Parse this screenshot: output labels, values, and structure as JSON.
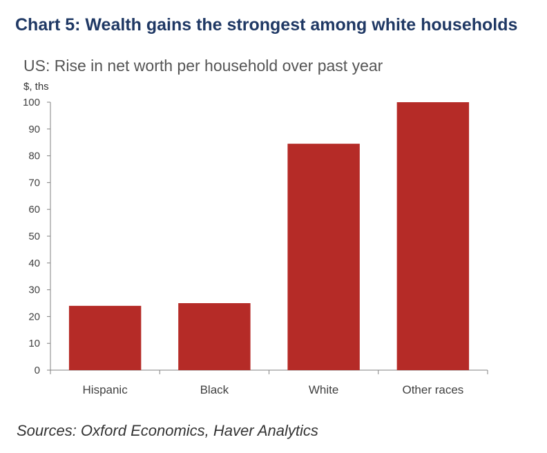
{
  "heading": "Chart 5: Wealth gains the strongest among white households",
  "subtitle": "US: Rise in net worth per household over past year",
  "unit_label": "$, ths",
  "source": "Sources: Oxford Economics, Haver Analytics",
  "colors": {
    "heading": "#1f3864",
    "bar": "#b52b27",
    "axis": "#808080",
    "text": "#404040"
  },
  "chart_data": {
    "type": "bar",
    "title": "US: Rise in net worth per household over past year",
    "xlabel": "",
    "ylabel": "$, ths",
    "categories": [
      "Hispanic",
      "Black",
      "White",
      "Other races"
    ],
    "values": [
      24,
      25,
      84.5,
      100
    ],
    "ylim": [
      0,
      100
    ],
    "yticks": [
      0,
      10,
      20,
      30,
      40,
      50,
      60,
      70,
      80,
      90,
      100
    ],
    "grid": false,
    "legend": "none"
  }
}
